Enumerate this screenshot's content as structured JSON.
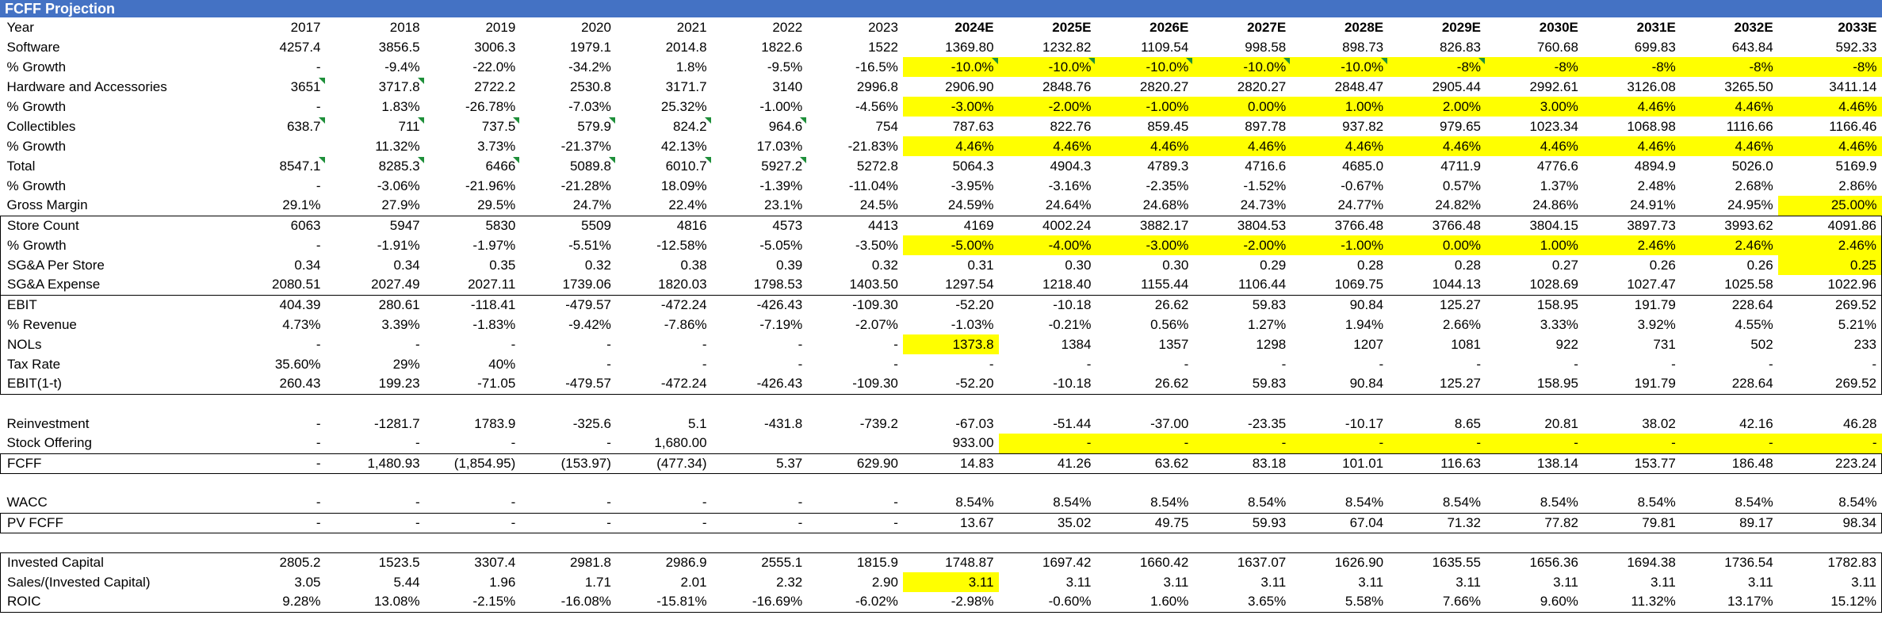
{
  "title": "FCFF Projection",
  "years": [
    "2017",
    "2018",
    "2019",
    "2020",
    "2021",
    "2022",
    "2023",
    "2024E",
    "2025E",
    "2026E",
    "2027E",
    "2028E",
    "2029E",
    "2030E",
    "2031E",
    "2032E",
    "2033E"
  ],
  "rows": [
    {
      "label": "Software",
      "values": [
        "4257.4",
        "3856.5",
        "3006.3",
        "1979.1",
        "2014.8",
        "1822.6",
        "1522",
        "1369.80",
        "1232.82",
        "1109.54",
        "998.58",
        "898.73",
        "826.83",
        "760.68",
        "699.83",
        "643.84",
        "592.33"
      ]
    },
    {
      "label": "% Growth",
      "values": [
        "-",
        "-9.4%",
        "-22.0%",
        "-34.2%",
        "1.8%",
        "-9.5%",
        "-16.5%",
        "-10.0%",
        "-10.0%",
        "-10.0%",
        "-10.0%",
        "-10.0%",
        "-8%",
        "-8%",
        "-8%",
        "-8%",
        "-8%"
      ]
    },
    {
      "label": "Hardware and Accessories",
      "values": [
        "3651",
        "3717.8",
        "2722.2",
        "2530.8",
        "3171.7",
        "3140",
        "2996.8",
        "2906.90",
        "2848.76",
        "2820.27",
        "2820.27",
        "2848.47",
        "2905.44",
        "2992.61",
        "3126.08",
        "3265.50",
        "3411.14"
      ]
    },
    {
      "label": "% Growth",
      "values": [
        "-",
        "1.83%",
        "-26.78%",
        "-7.03%",
        "25.32%",
        "-1.00%",
        "-4.56%",
        "-3.00%",
        "-2.00%",
        "-1.00%",
        "0.00%",
        "1.00%",
        "2.00%",
        "3.00%",
        "4.46%",
        "4.46%",
        "4.46%"
      ]
    },
    {
      "label": "Collectibles",
      "values": [
        "638.7",
        "711",
        "737.5",
        "579.9",
        "824.2",
        "964.6",
        "754",
        "787.63",
        "822.76",
        "859.45",
        "897.78",
        "937.82",
        "979.65",
        "1023.34",
        "1068.98",
        "1116.66",
        "1166.46"
      ]
    },
    {
      "label": "% Growth",
      "values": [
        "",
        "11.32%",
        "3.73%",
        "-21.37%",
        "42.13%",
        "17.03%",
        "-21.83%",
        "4.46%",
        "4.46%",
        "4.46%",
        "4.46%",
        "4.46%",
        "4.46%",
        "4.46%",
        "4.46%",
        "4.46%",
        "4.46%"
      ]
    },
    {
      "label": "Total",
      "values": [
        "8547.1",
        "8285.3",
        "6466",
        "5089.8",
        "6010.7",
        "5927.2",
        "5272.8",
        "5064.3",
        "4904.3",
        "4789.3",
        "4716.6",
        "4685.0",
        "4711.9",
        "4776.6",
        "4894.9",
        "5026.0",
        "5169.9"
      ]
    },
    {
      "label": "% Growth",
      "values": [
        "-",
        "-3.06%",
        "-21.96%",
        "-21.28%",
        "18.09%",
        "-1.39%",
        "-11.04%",
        "-3.95%",
        "-3.16%",
        "-2.35%",
        "-1.52%",
        "-0.67%",
        "0.57%",
        "1.37%",
        "2.48%",
        "2.68%",
        "2.86%"
      ]
    },
    {
      "label": "Gross Margin",
      "values": [
        "29.1%",
        "27.9%",
        "29.5%",
        "24.7%",
        "22.4%",
        "23.1%",
        "24.5%",
        "24.59%",
        "24.64%",
        "24.68%",
        "24.73%",
        "24.77%",
        "24.82%",
        "24.86%",
        "24.91%",
        "24.95%",
        "25.00%"
      ]
    },
    {
      "label": "Store Count",
      "values": [
        "6063",
        "5947",
        "5830",
        "5509",
        "4816",
        "4573",
        "4413",
        "4169",
        "4002.24",
        "3882.17",
        "3804.53",
        "3766.48",
        "3766.48",
        "3804.15",
        "3897.73",
        "3993.62",
        "4091.86"
      ]
    },
    {
      "label": "% Growth",
      "values": [
        "-",
        "-1.91%",
        "-1.97%",
        "-5.51%",
        "-12.58%",
        "-5.05%",
        "-3.50%",
        "-5.00%",
        "-4.00%",
        "-3.00%",
        "-2.00%",
        "-1.00%",
        "0.00%",
        "1.00%",
        "2.46%",
        "2.46%",
        "2.46%"
      ]
    },
    {
      "label": "SG&A Per Store",
      "values": [
        "0.34",
        "0.34",
        "0.35",
        "0.32",
        "0.38",
        "0.39",
        "0.32",
        "0.31",
        "0.30",
        "0.30",
        "0.29",
        "0.28",
        "0.28",
        "0.27",
        "0.26",
        "0.26",
        "0.25"
      ]
    },
    {
      "label": "SG&A Expense",
      "values": [
        "2080.51",
        "2027.49",
        "2027.11",
        "1739.06",
        "1820.03",
        "1798.53",
        "1403.50",
        "1297.54",
        "1218.40",
        "1155.44",
        "1106.44",
        "1069.75",
        "1044.13",
        "1028.69",
        "1027.47",
        "1025.58",
        "1022.96"
      ]
    },
    {
      "label": "EBIT",
      "values": [
        "404.39",
        "280.61",
        "-118.41",
        "-479.57",
        "-472.24",
        "-426.43",
        "-109.30",
        "-52.20",
        "-10.18",
        "26.62",
        "59.83",
        "90.84",
        "125.27",
        "158.95",
        "191.79",
        "228.64",
        "269.52"
      ]
    },
    {
      "label": "% Revenue",
      "values": [
        "4.73%",
        "3.39%",
        "-1.83%",
        "-9.42%",
        "-7.86%",
        "-7.19%",
        "-2.07%",
        "-1.03%",
        "-0.21%",
        "0.56%",
        "1.27%",
        "1.94%",
        "2.66%",
        "3.33%",
        "3.92%",
        "4.55%",
        "5.21%"
      ]
    },
    {
      "label": "NOLs",
      "values": [
        "-",
        "-",
        "-",
        "-",
        "-",
        "-",
        "-",
        "1373.8",
        "1384",
        "1357",
        "1298",
        "1207",
        "1081",
        "922",
        "731",
        "502",
        "233"
      ]
    },
    {
      "label": "Tax Rate",
      "values": [
        "35.60%",
        "29%",
        "40%",
        "-",
        "-",
        "-",
        "-",
        "-",
        "-",
        "-",
        "-",
        "-",
        "-",
        "-",
        "-",
        "-",
        "-"
      ]
    },
    {
      "label": "EBIT(1-t)",
      "values": [
        "260.43",
        "199.23",
        "-71.05",
        "-479.57",
        "-472.24",
        "-426.43",
        "-109.30",
        "-52.20",
        "-10.18",
        "26.62",
        "59.83",
        "90.84",
        "125.27",
        "158.95",
        "191.79",
        "228.64",
        "269.52"
      ]
    },
    {
      "label": "",
      "values": [
        "",
        "",
        "",
        "",
        "",
        "",
        "",
        "",
        "",
        "",
        "",
        "",
        "",
        "",
        "",
        "",
        ""
      ]
    },
    {
      "label": "Reinvestment",
      "values": [
        "-",
        "-1281.7",
        "1783.9",
        "-325.6",
        "5.1",
        "-431.8",
        "-739.2",
        "-67.03",
        "-51.44",
        "-37.00",
        "-23.35",
        "-10.17",
        "8.65",
        "20.81",
        "38.02",
        "42.16",
        "46.28"
      ]
    },
    {
      "label": "Stock Offering",
      "values": [
        "-",
        "-",
        "-",
        "-",
        "1,680.00",
        "",
        "",
        "933.00",
        "-",
        "-",
        "-",
        "-",
        "-",
        "-",
        "-",
        "-",
        "-"
      ]
    },
    {
      "label": "FCFF",
      "values": [
        "-",
        "1,480.93",
        "(1,854.95)",
        "(153.97)",
        "(477.34)",
        "5.37",
        "629.90",
        "14.83",
        "41.26",
        "63.62",
        "83.18",
        "101.01",
        "116.63",
        "138.14",
        "153.77",
        "186.48",
        "223.24"
      ]
    },
    {
      "label": "",
      "values": [
        "",
        "",
        "",
        "",
        "",
        "",
        "",
        "",
        "",
        "",
        "",
        "",
        "",
        "",
        "",
        "",
        ""
      ]
    },
    {
      "label": "WACC",
      "values": [
        "-",
        "-",
        "-",
        "-",
        "-",
        "-",
        "-",
        "8.54%",
        "8.54%",
        "8.54%",
        "8.54%",
        "8.54%",
        "8.54%",
        "8.54%",
        "8.54%",
        "8.54%",
        "8.54%"
      ]
    },
    {
      "label": "PV FCFF",
      "values": [
        "-",
        "-",
        "-",
        "-",
        "-",
        "-",
        "-",
        "13.67",
        "35.02",
        "49.75",
        "59.93",
        "67.04",
        "71.32",
        "77.82",
        "79.81",
        "89.17",
        "98.34"
      ]
    },
    {
      "label": "",
      "values": [
        "",
        "",
        "",
        "",
        "",
        "",
        "",
        "",
        "",
        "",
        "",
        "",
        "",
        "",
        "",
        "",
        ""
      ]
    },
    {
      "label": "Invested Capital",
      "values": [
        "2805.2",
        "1523.5",
        "3307.4",
        "2981.8",
        "2986.9",
        "2555.1",
        "1815.9",
        "1748.87",
        "1697.42",
        "1660.42",
        "1637.07",
        "1626.90",
        "1635.55",
        "1656.36",
        "1694.38",
        "1736.54",
        "1782.83"
      ]
    },
    {
      "label": "Sales/(Invested Capital)",
      "values": [
        "3.05",
        "5.44",
        "1.96",
        "1.71",
        "2.01",
        "2.32",
        "2.90",
        "3.11",
        "3.11",
        "3.11",
        "3.11",
        "3.11",
        "3.11",
        "3.11",
        "3.11",
        "3.11",
        "3.11"
      ]
    },
    {
      "label": "ROIC",
      "values": [
        "9.28%",
        "13.08%",
        "-2.15%",
        "-16.08%",
        "-15.81%",
        "-16.69%",
        "-6.02%",
        "-2.98%",
        "-0.60%",
        "1.60%",
        "3.65%",
        "5.58%",
        "7.66%",
        "9.60%",
        "11.32%",
        "13.17%",
        "15.12%"
      ]
    }
  ],
  "highlight_cells": [
    [
      1,
      7
    ],
    [
      1,
      8
    ],
    [
      1,
      9
    ],
    [
      1,
      10
    ],
    [
      1,
      11
    ],
    [
      1,
      12
    ],
    [
      1,
      13
    ],
    [
      1,
      14
    ],
    [
      1,
      15
    ],
    [
      1,
      16
    ],
    [
      3,
      7
    ],
    [
      3,
      8
    ],
    [
      3,
      9
    ],
    [
      3,
      10
    ],
    [
      3,
      11
    ],
    [
      3,
      12
    ],
    [
      3,
      13
    ],
    [
      3,
      14
    ],
    [
      3,
      15
    ],
    [
      3,
      16
    ],
    [
      5,
      7
    ],
    [
      5,
      8
    ],
    [
      5,
      9
    ],
    [
      5,
      10
    ],
    [
      5,
      11
    ],
    [
      5,
      12
    ],
    [
      5,
      13
    ],
    [
      5,
      14
    ],
    [
      5,
      15
    ],
    [
      5,
      16
    ],
    [
      8,
      16
    ],
    [
      10,
      7
    ],
    [
      10,
      8
    ],
    [
      10,
      9
    ],
    [
      10,
      10
    ],
    [
      10,
      11
    ],
    [
      10,
      12
    ],
    [
      10,
      13
    ],
    [
      10,
      14
    ],
    [
      10,
      15
    ],
    [
      10,
      16
    ],
    [
      11,
      16
    ],
    [
      15,
      7
    ],
    [
      20,
      8
    ],
    [
      20,
      9
    ],
    [
      20,
      10
    ],
    [
      20,
      11
    ],
    [
      20,
      12
    ],
    [
      20,
      13
    ],
    [
      20,
      14
    ],
    [
      20,
      15
    ],
    [
      20,
      16
    ],
    [
      27,
      7
    ]
  ],
  "flag_cells": [
    [
      1,
      7
    ],
    [
      1,
      8
    ],
    [
      1,
      9
    ],
    [
      1,
      10
    ],
    [
      1,
      11
    ],
    [
      1,
      12
    ],
    [
      2,
      0
    ],
    [
      2,
      1
    ],
    [
      4,
      0
    ],
    [
      4,
      1
    ],
    [
      4,
      2
    ],
    [
      4,
      3
    ],
    [
      4,
      4
    ],
    [
      4,
      5
    ],
    [
      6,
      0
    ],
    [
      6,
      1
    ],
    [
      6,
      2
    ],
    [
      6,
      3
    ],
    [
      6,
      4
    ],
    [
      6,
      5
    ]
  ],
  "colors": {
    "header_bg": "#4472C4",
    "highlight": "#FFFF00",
    "flag": "#1e8f3a"
  }
}
